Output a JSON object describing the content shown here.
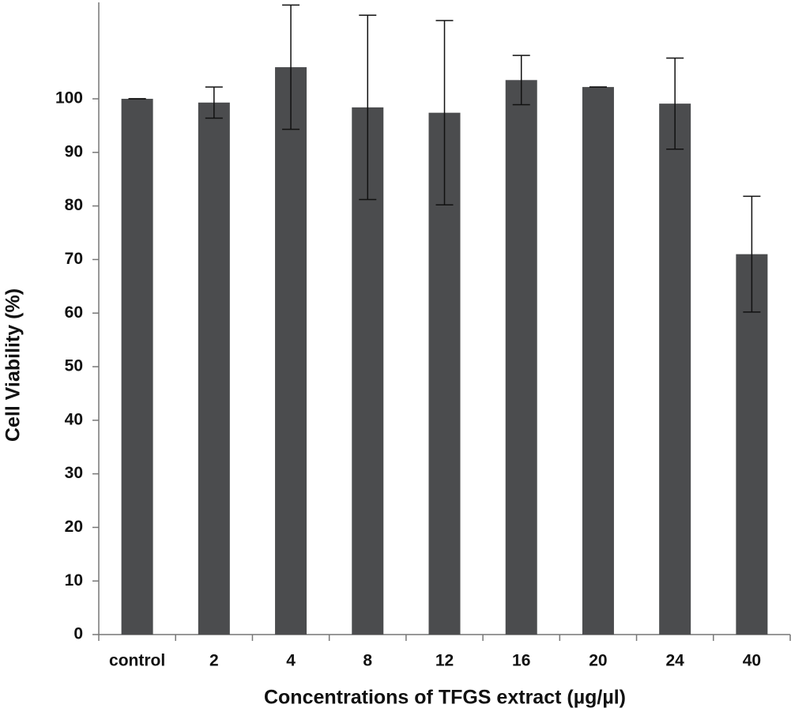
{
  "chart_data": {
    "type": "bar",
    "xlabel": "Concentrations of TFGS extract (µg/µl)",
    "ylabel": "Cell Viability (%)",
    "categories": [
      "control",
      "2",
      "4",
      "8",
      "12",
      "16",
      "20",
      "24",
      "40"
    ],
    "values": [
      100,
      99.3,
      105.9,
      98.4,
      97.4,
      103.5,
      102.2,
      99.1,
      71.0
    ],
    "errors": [
      0,
      2.9,
      11.6,
      17.2,
      17.2,
      4.6,
      0,
      8.5,
      10.8
    ],
    "color": "#4b4c4e",
    "ylim": [
      0,
      118
    ],
    "yticks": [
      0,
      10,
      20,
      30,
      40,
      50,
      60,
      70,
      80,
      90,
      100
    ]
  }
}
